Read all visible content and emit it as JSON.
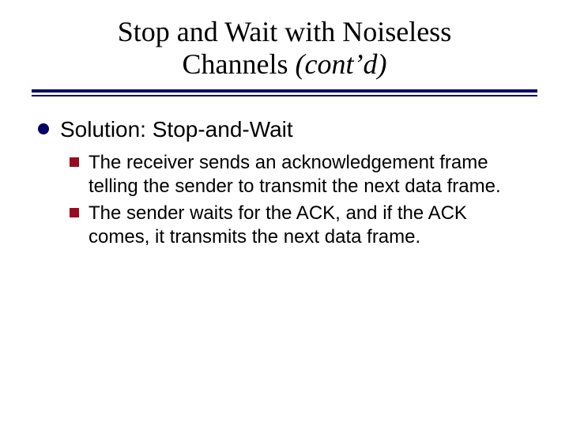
{
  "colors": {
    "rule": "#010066",
    "l1_bullet": "#010066",
    "l2_square": "#9a0b1d",
    "text": "#000000",
    "background": "#ffffff"
  },
  "title": {
    "line1": "Stop and Wait with Noiseless",
    "line2_plain": "Channels ",
    "line2_italic": "(cont’d)",
    "fontsize": 36
  },
  "body": {
    "l1_fontsize": 28,
    "l2_fontsize": 24,
    "items": [
      {
        "text": "Solution:  Stop-and-Wait",
        "sub": [
          "The receiver sends an acknowledgement frame telling the sender to transmit the next data frame.",
          "The sender waits for the ACK, and if the ACK comes, it transmits the next data frame."
        ]
      }
    ]
  }
}
